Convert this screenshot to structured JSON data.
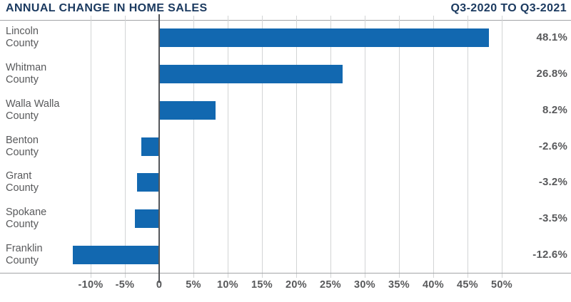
{
  "colors": {
    "background": "#ffffff",
    "bar": "#1268b0",
    "title": "#1b3a60",
    "text": "#58595b",
    "gridline": "#d2d4d5",
    "axis_border": "#a2a4a7",
    "zero_line": "#55575b"
  },
  "chart_data": {
    "type": "bar",
    "orientation": "horizontal",
    "title": "ANNUAL CHANGE IN HOME SALES",
    "subtitle": "Q3-2020 TO Q3-2021",
    "categories": [
      "Lincoln County",
      "Whitman County",
      "Walla Walla County",
      "Benton County",
      "Grant County",
      "Spokane County",
      "Franklin County"
    ],
    "values": [
      48.1,
      26.8,
      8.2,
      -2.6,
      -3.2,
      -3.5,
      -12.6
    ],
    "value_labels": [
      "48.1%",
      "26.8%",
      "8.2%",
      "-2.6%",
      "-3.2%",
      "-3.5%",
      "-12.6%"
    ],
    "xlabel": "",
    "ylabel": "",
    "x_ticks": [
      -10,
      -5,
      0,
      5,
      10,
      15,
      20,
      25,
      30,
      35,
      40,
      45,
      50
    ],
    "x_tick_labels": [
      "-10%",
      "-5%",
      "0",
      "5%",
      "10%",
      "15%",
      "20%",
      "25%",
      "30%",
      "35%",
      "40%",
      "45%",
      "50%"
    ],
    "xlim": [
      -23,
      60
    ],
    "grid": true,
    "legend": false
  }
}
